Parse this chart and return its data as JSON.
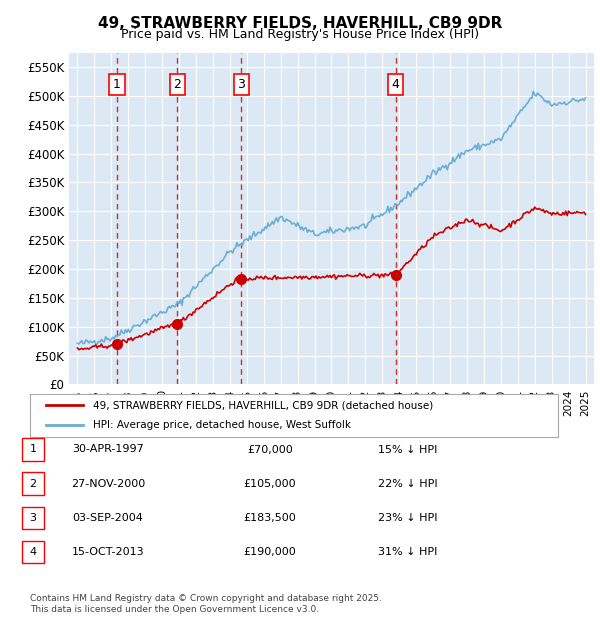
{
  "title": "49, STRAWBERRY FIELDS, HAVERHILL, CB9 9DR",
  "subtitle": "Price paid vs. HM Land Registry's House Price Index (HPI)",
  "bg_color": "#dce9f5",
  "plot_bg_color": "#dce9f5",
  "fig_bg_color": "#ffffff",
  "ylim": [
    0,
    575000
  ],
  "yticks": [
    0,
    50000,
    100000,
    150000,
    200000,
    250000,
    300000,
    350000,
    400000,
    450000,
    500000,
    550000
  ],
  "ytick_labels": [
    "£0",
    "£50K",
    "£100K",
    "£150K",
    "£200K",
    "£250K",
    "£300K",
    "£350K",
    "£400K",
    "£450K",
    "£500K",
    "£550K"
  ],
  "xlim_start": 1994.5,
  "xlim_end": 2025.5,
  "hpi_color": "#6baed6",
  "price_color": "#cc0000",
  "marker_color": "#cc0000",
  "vline_color": "#cc0000",
  "purchases": [
    {
      "num": 1,
      "date": "30-APR-1997",
      "price": 70000,
      "year": 1997.33,
      "pct": "15%",
      "dir": "↓"
    },
    {
      "num": 2,
      "date": "27-NOV-2000",
      "price": 105000,
      "year": 2000.9,
      "pct": "22%",
      "dir": "↓"
    },
    {
      "num": 3,
      "date": "03-SEP-2004",
      "price": 183500,
      "year": 2004.67,
      "pct": "23%",
      "dir": "↓"
    },
    {
      "num": 4,
      "date": "15-OCT-2013",
      "price": 190000,
      "year": 2013.79,
      "pct": "31%",
      "dir": "↓"
    }
  ],
  "legend_line1": "49, STRAWBERRY FIELDS, HAVERHILL, CB9 9DR (detached house)",
  "legend_line2": "HPI: Average price, detached house, West Suffolk",
  "footer": "Contains HM Land Registry data © Crown copyright and database right 2025.\nThis data is licensed under the Open Government Licence v3.0.",
  "table_rows": [
    {
      "num": 1,
      "date": "30-APR-1997",
      "price": "£70,000",
      "note": "15% ↓ HPI"
    },
    {
      "num": 2,
      "date": "27-NOV-2000",
      "price": "£105,000",
      "note": "22% ↓ HPI"
    },
    {
      "num": 3,
      "date": "03-SEP-2004",
      "price": "£183,500",
      "note": "23% ↓ HPI"
    },
    {
      "num": 4,
      "date": "15-OCT-2013",
      "price": "£190,000",
      "note": "31% ↓ HPI"
    }
  ]
}
